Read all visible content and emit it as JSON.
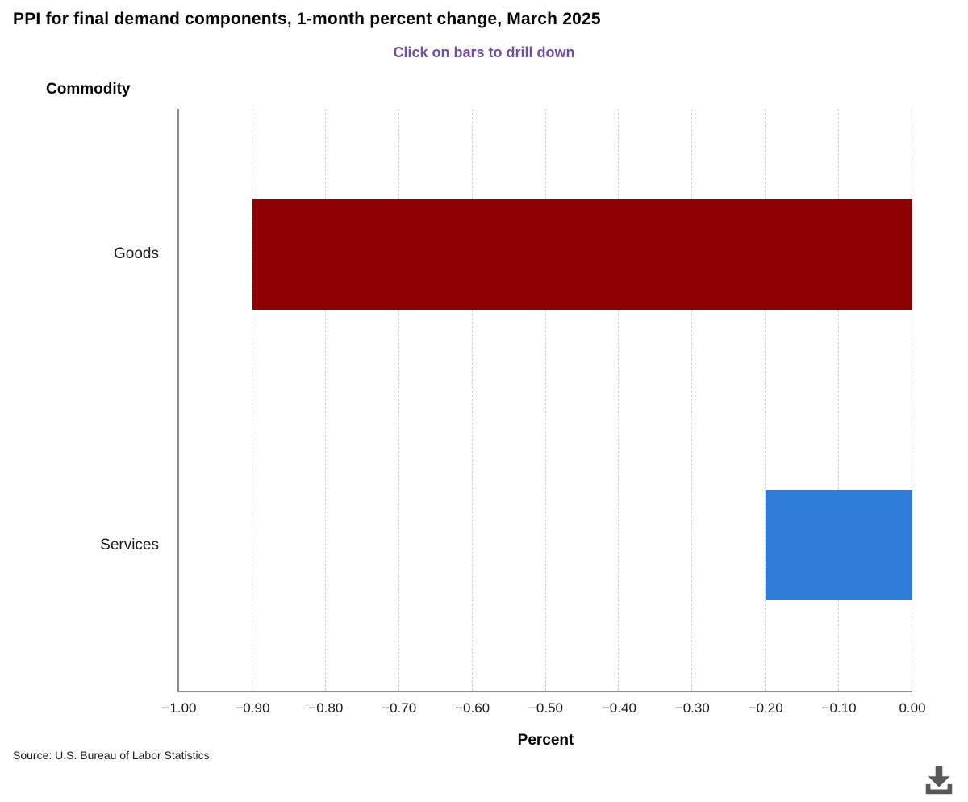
{
  "header": {
    "title": "PPI for final demand components, 1-month percent change, March 2025",
    "subtitle": "Click on bars to drill down",
    "subtitle_color": "#744e9e"
  },
  "chart_data": {
    "type": "bar",
    "orientation": "horizontal",
    "title": "PPI for final demand components, 1-month percent change, March 2025",
    "subtitle": "Click on bars to drill down",
    "categories": [
      "Goods",
      "Services"
    ],
    "values": [
      -0.9,
      -0.2
    ],
    "bar_colors": [
      "#8f0002",
      "#2e7cd8"
    ],
    "xlabel": "Percent",
    "ylabel": "Commodity",
    "xlim": [
      -1.0,
      0.0
    ],
    "xticks": [
      -1.0,
      -0.9,
      -0.8,
      -0.7,
      -0.6,
      -0.5,
      -0.4,
      -0.3,
      -0.2,
      -0.1,
      0.0
    ],
    "xtick_labels": [
      "−1.00",
      "−0.90",
      "−0.80",
      "−0.70",
      "−0.60",
      "−0.50",
      "−0.40",
      "−0.30",
      "−0.20",
      "−0.10",
      "0.00"
    ],
    "grid": "vertical-dashed",
    "legend": "none",
    "axis_color": "#8a8a8a",
    "gridline_color": "#cfcfcf"
  },
  "footer": {
    "source": "Source: U.S. Bureau of Labor Statistics.",
    "download_icon": "download-icon",
    "icon_color": "#58585a"
  }
}
